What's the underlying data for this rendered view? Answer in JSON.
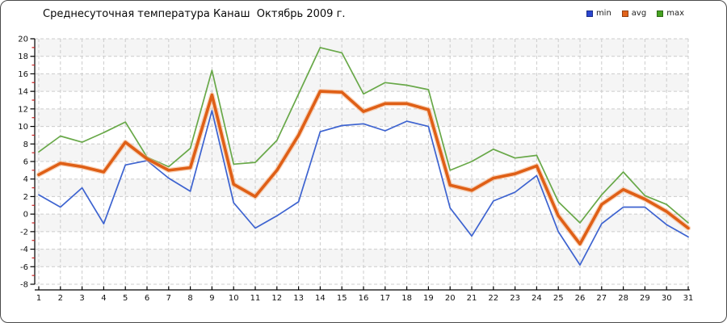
{
  "title": "Среднесуточная температура Канаш  Октябрь 2009 г.",
  "legend": {
    "position": "top-right",
    "items": [
      {
        "id": "min",
        "label": "min",
        "color": "#2a46d0"
      },
      {
        "id": "avg",
        "label": "avg",
        "color": "#e2641c"
      },
      {
        "id": "max",
        "label": "max",
        "color": "#46a321"
      }
    ]
  },
  "chart_data": {
    "type": "line",
    "title": "Среднесуточная температура Канаш  Октябрь 2009 г.",
    "xlabel": "",
    "ylabel": "",
    "x": [
      1,
      2,
      3,
      4,
      5,
      6,
      7,
      8,
      9,
      10,
      11,
      12,
      13,
      14,
      15,
      16,
      17,
      18,
      19,
      20,
      21,
      22,
      23,
      24,
      25,
      26,
      27,
      28,
      29,
      30,
      31
    ],
    "x_tick_labels": [
      "1",
      "2",
      "3",
      "4",
      "5",
      "6",
      "7",
      "8",
      "9",
      "10",
      "11",
      "12",
      "13",
      "14",
      "15",
      "16",
      "17",
      "18",
      "19",
      "20",
      "21",
      "22",
      "23",
      "24",
      "25",
      "26",
      "27",
      "28",
      "29",
      "30",
      "31"
    ],
    "ylim": [
      -8,
      20
    ],
    "y_major_step": 2,
    "y_tick_labels": [
      "20",
      "18",
      "16",
      "14",
      "12",
      "10",
      "8",
      "6",
      "4",
      "2",
      "0",
      "-2",
      "-4",
      "-6",
      "-8"
    ],
    "grid": true,
    "gridline_style": "dashed",
    "alternating_bands": true,
    "legend_position": "top-right",
    "series": [
      {
        "name": "min",
        "color": "#3d63d0",
        "width": 1.7,
        "values": [
          2.2,
          0.8,
          3.0,
          -1.1,
          5.6,
          6.1,
          4.1,
          2.6,
          11.8,
          1.3,
          -1.6,
          -0.2,
          1.4,
          9.4,
          10.1,
          10.3,
          9.5,
          10.6,
          10.0,
          0.7,
          -2.5,
          1.5,
          2.5,
          4.4,
          -2.0,
          -5.8,
          -1.1,
          0.8,
          0.8,
          -1.2,
          -2.6
        ]
      },
      {
        "name": "avg",
        "color": "#df5f16",
        "halo_color": "#f4b183",
        "width": 3.6,
        "values": [
          4.5,
          5.8,
          5.4,
          4.8,
          8.2,
          6.3,
          5.0,
          5.3,
          13.6,
          3.4,
          2.0,
          5.0,
          9.0,
          14.0,
          13.9,
          11.7,
          12.6,
          12.6,
          11.9,
          3.3,
          2.7,
          4.1,
          4.6,
          5.5,
          -0.2,
          -3.4,
          1.1,
          2.8,
          1.7,
          0.3,
          -1.6
        ]
      },
      {
        "name": "max",
        "color": "#68a848",
        "width": 1.7,
        "values": [
          7.1,
          8.9,
          8.2,
          9.3,
          10.5,
          6.5,
          5.4,
          7.5,
          16.4,
          5.7,
          5.9,
          8.4,
          13.7,
          19.0,
          18.4,
          13.7,
          15.0,
          14.7,
          14.2,
          5.0,
          6.0,
          7.4,
          6.4,
          6.7,
          1.4,
          -1.0,
          2.2,
          4.8,
          2.1,
          1.1,
          -1.0
        ]
      }
    ]
  },
  "style": {
    "band_color": "#f5f5f5",
    "gridline_color": "#cccccc",
    "axis_color": "#000000",
    "minor_tick_color": "#cc2222",
    "tick_label_color": "#111111"
  }
}
